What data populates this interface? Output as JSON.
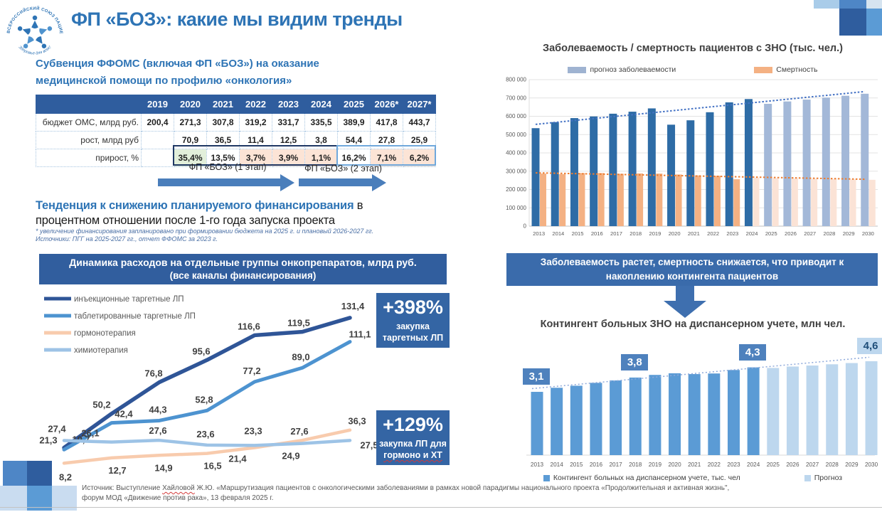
{
  "slide": {
    "title": "ФП «БОЗ»: какие мы видим тренды",
    "accent_color": "#2E74B5"
  },
  "logo": {
    "ring_text": "ВСЕРОССИЙСКИЙ СОЮЗ ПАЦИЕНТОВ",
    "tagline": "Здоровье для всех!"
  },
  "funding": {
    "heading": "Субвенция ФФОМС (включая ФП «БОЗ») на оказание медицинской помощи по профилю «онкология»",
    "table": {
      "years": [
        "2019",
        "2020",
        "2021",
        "2022",
        "2023",
        "2024",
        "2025",
        "2026*",
        "2027*"
      ],
      "rows": [
        {
          "label": "бюджет ОМС, млрд руб.",
          "values": [
            "200,4",
            "271,3",
            "307,8",
            "319,2",
            "331,7",
            "335,5",
            "389,9",
            "417,8",
            "443,7"
          ]
        },
        {
          "label": "рост, млрд руб",
          "values": [
            "",
            "70,9",
            "36,5",
            "11,4",
            "12,5",
            "3,8",
            "54,4",
            "27,8",
            "25,9"
          ]
        },
        {
          "label": "прирост, %",
          "values": [
            "",
            "35,4%",
            "13,5%",
            "3,7%",
            "3,9%",
            "1,1%",
            "16,2%",
            "7,1%",
            "6,2%"
          ]
        }
      ],
      "highlight_green": "#E2EFDA",
      "highlight_peach": "#FCE4D6",
      "stage1_border": "#1F3864",
      "stage2_border": "#6FA8DC"
    },
    "stage1_label": "ФП «БОЗ» (1 этап)",
    "stage2_label": "ФП «БОЗ» (2 этап)",
    "trend_bold": "Тенденция к снижению планируемого финансирования",
    "trend_rest": " в процентном отношении после 1-го года запуска проекта",
    "footnote1": "* увеличение финансирования запланировано при формировании бюджета на 2025 г. и плановый 2026-2027 гг.",
    "footnote2": "Источники: ПГГ на 2025-2027 гг., отчет ФФОМС за 2023 г."
  },
  "drug_callouts": {
    "c1_value": "+398%",
    "c1_label_1": "закупка",
    "c1_label_2": "таргетных ЛП",
    "c2_value": "+129%",
    "c2_label_1": "закупка ЛП для",
    "c2_label_2": "гормоно и ХТ"
  },
  "right": {
    "callout": "Заболеваемость растет, смертность снижается, что приводит к накоплению контингента пациентов"
  },
  "source": {
    "prefix": "Источник: Выступление ",
    "name": "Хайловой",
    "line1_rest": " Ж.Ю. «Маршрутизация пациентов с онкологическими заболеваниями в рамках новой парадигмы национального проекта «Продолжительная и активная жизнь\",",
    "line2": "форум МОД «Движение против рака», 13 февраля 2025 г."
  },
  "chart_data": [
    {
      "id": "drug_spending",
      "type": "line",
      "title": "Динамика расходов на отдельные группы онкопрепаратов, млрд руб.",
      "subtitle": "(все каналы финансирования)",
      "x_labels_visible": false,
      "points": 7,
      "ylim": [
        0,
        140
      ],
      "grid": false,
      "legend_position": "top-left",
      "series": [
        {
          "name": "инъекционные таргетные ЛП",
          "color": "#2F5597",
          "width": 5.5,
          "values": [
            21.3,
            50.2,
            76.8,
            95.6,
            116.6,
            119.5,
            131.4
          ]
        },
        {
          "name": "таблетированные таргетные ЛП",
          "color": "#4D93D0",
          "width": 5,
          "values": [
            19.7,
            42.4,
            44.3,
            52.8,
            77.2,
            89.0,
            111.1
          ]
        },
        {
          "name": "гормонотерапия",
          "color": "#F8CBAD",
          "width": 4.5,
          "values": [
            8.2,
            12.7,
            14.9,
            16.5,
            21.4,
            27.6,
            36.3
          ]
        },
        {
          "name": "химиотерапия",
          "color": "#9DC3E6",
          "width": 4.5,
          "values": [
            27.4,
            26.1,
            27.6,
            23.6,
            23.3,
            24.9,
            27.5
          ]
        }
      ]
    },
    {
      "id": "incidence_mortality",
      "type": "bar",
      "title": "Заболеваемость / смертность пациентов с ЗНО (тыс. чел.)",
      "categories": [
        "2013",
        "2014",
        "2015",
        "2016",
        "2017",
        "2018",
        "2019",
        "2020",
        "2021",
        "2022",
        "2023",
        "2024",
        "2025",
        "2026",
        "2027",
        "2028",
        "2029",
        "2030"
      ],
      "ylim": [
        0,
        800000
      ],
      "y_ticks": [
        "0",
        "100 000",
        "200 000",
        "300 000",
        "400 000",
        "500 000",
        "600 000",
        "700 000",
        "800 000"
      ],
      "grid": true,
      "series": [
        {
          "name": "прогноз заболеваемости",
          "legend_color": "#9FB3D1",
          "color_hist": "#2E6CA6",
          "color_forecast": "#A3B8D8",
          "forecast_from_index": 12,
          "values": [
            535000,
            568000,
            590000,
            599000,
            614000,
            625000,
            643000,
            554000,
            578000,
            622000,
            676000,
            694000,
            668000,
            681000,
            691000,
            702000,
            712000,
            723000
          ]
        },
        {
          "name": "Смертность",
          "legend_color": "#F4B183",
          "color_hist": "#F4B183",
          "color_forecast": "#FBE3D6",
          "forecast_from_index": 11,
          "values": [
            287000,
            284000,
            290000,
            290000,
            286000,
            288000,
            287000,
            282000,
            277000,
            275000,
            256000,
            264000,
            262000,
            260000,
            258000,
            257000,
            255000,
            253000
          ]
        }
      ],
      "trend_lines": [
        {
          "color": "#4472C4",
          "start": 556000,
          "end": 735000
        },
        {
          "color": "#ED7D31",
          "start": 291000,
          "end": 256000
        }
      ]
    },
    {
      "id": "contingent",
      "type": "bar",
      "title": "Контингент больных ЗНО на диспансерном учете, млн чел.",
      "categories": [
        "2013",
        "2014",
        "2015",
        "2016",
        "2017",
        "2018",
        "2019",
        "2020",
        "2021",
        "2022",
        "2023",
        "2024",
        "2025",
        "2026",
        "2027",
        "2028",
        "2029",
        "2030"
      ],
      "ylim": [
        0,
        5
      ],
      "grid": false,
      "forecast_from_index": 12,
      "colors": {
        "hist": "#5B9BD5",
        "forecast": "#BDD7EE",
        "trend": "#8EA9DB",
        "callout_bg": "#4E81BD",
        "callout_light_bg": "#BDD7EE",
        "callout_light_text": "#1F4E79"
      },
      "values": [
        3.1,
        3.3,
        3.4,
        3.54,
        3.66,
        3.8,
        3.93,
        4.01,
        3.97,
        4.0,
        4.17,
        4.3,
        4.27,
        4.34,
        4.39,
        4.45,
        4.51,
        4.6
      ],
      "callout_labels": [
        {
          "index": 0,
          "text": "3,1",
          "style": "dark"
        },
        {
          "index": 5,
          "text": "3,8",
          "style": "dark"
        },
        {
          "index": 11,
          "text": "4,3",
          "style": "dark"
        },
        {
          "index": 17,
          "text": "4,6",
          "style": "light"
        }
      ],
      "legend": [
        {
          "label": "Контингент больных на диспансерном учете, тыс. чел",
          "color": "#5B9BD5"
        },
        {
          "label": "Прогноз",
          "color": "#BDD7EE"
        }
      ]
    }
  ]
}
